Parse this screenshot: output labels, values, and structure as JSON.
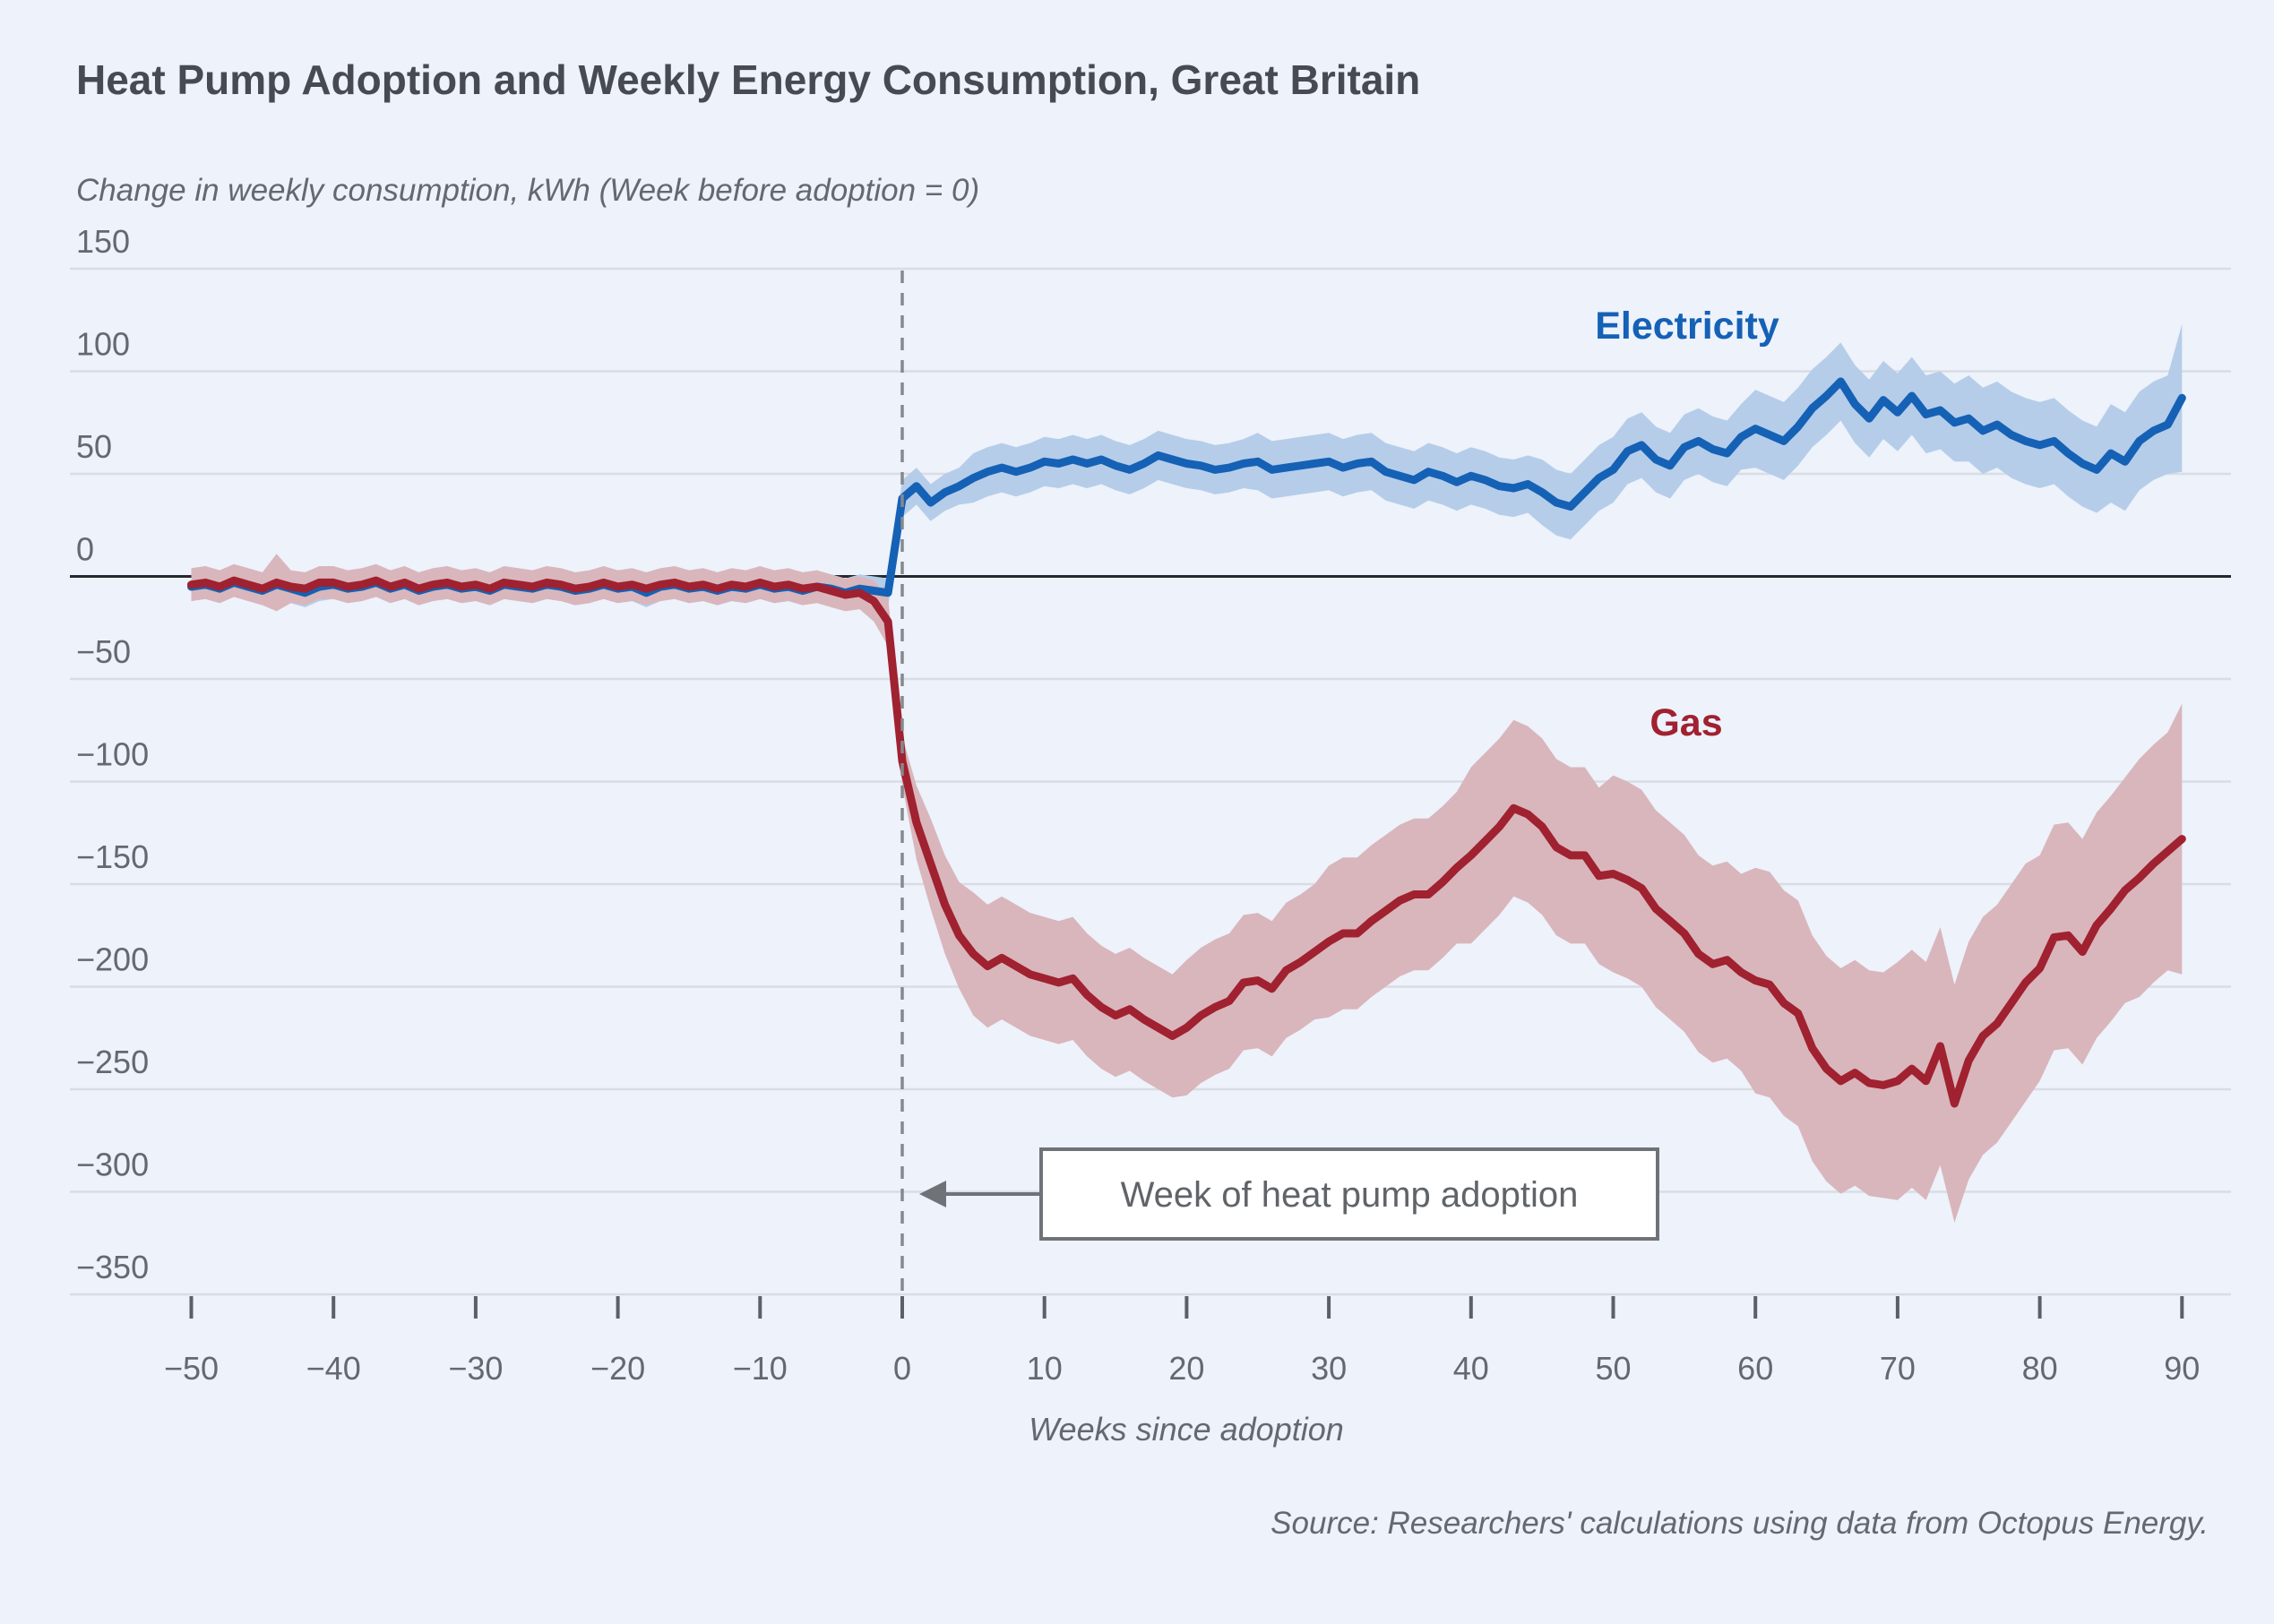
{
  "title": "Heat Pump Adoption and Weekly Energy Consumption, Great Britain",
  "subtitle": "Change in weekly consumption, kWh (Week before adoption = 0)",
  "source": "Source: Researchers' calculations using data from Octopus Energy.",
  "annotation": {
    "text": "Week of heat pump adoption"
  },
  "series_labels": {
    "electricity": "Electricity",
    "gas": "Gas"
  },
  "colors": {
    "background": "#edf2fb",
    "title_color": "#474b51",
    "muted_text": "#64696f",
    "grid": "#d9dde3",
    "zero_line": "#26282c",
    "axis_line": "#c6cad1",
    "tick": "#5c6066",
    "dashed_line": "#85898e",
    "electricity": "#1561b5",
    "electricity_band": "#b5cde9",
    "gas": "#a02130",
    "gas_band": "#d9b6bc",
    "annotation_border": "#6f7378",
    "annotation_text": "#606468",
    "annotation_bg": "#ffffff"
  },
  "chart_data": {
    "type": "line",
    "title": "Heat Pump Adoption and Weekly Energy Consumption, Great Britain",
    "xlabel": "Weeks since adoption",
    "ylabel": "Change in weekly consumption, kWh (Week before adoption = 0)",
    "xlim": [
      -50,
      90
    ],
    "ylim": [
      -350,
      150
    ],
    "x_ticks": [
      -50,
      -40,
      -30,
      -20,
      -10,
      0,
      10,
      20,
      30,
      40,
      50,
      60,
      70,
      80,
      90
    ],
    "y_ticks": [
      150,
      100,
      50,
      0,
      -50,
      -100,
      -150,
      -200,
      -250,
      -300,
      -350
    ],
    "grid": true,
    "legend_position": "inline-labels",
    "weeks_start": -50,
    "series": [
      {
        "name": "Electricity",
        "key": "electricity",
        "values": [
          -5,
          -4,
          -6,
          -3,
          -5,
          -7,
          -4,
          -6,
          -8,
          -5,
          -4,
          -6,
          -5,
          -3,
          -6,
          -4,
          -7,
          -5,
          -4,
          -6,
          -5,
          -7,
          -4,
          -5,
          -6,
          -4,
          -5,
          -7,
          -6,
          -4,
          -6,
          -5,
          -8,
          -5,
          -4,
          -6,
          -5,
          -7,
          -5,
          -6,
          -4,
          -6,
          -5,
          -7,
          -5,
          -6,
          -8,
          -6,
          -7,
          -8,
          38,
          44,
          36,
          41,
          44,
          48,
          51,
          53,
          51,
          53,
          56,
          55,
          57,
          55,
          57,
          54,
          52,
          55,
          59,
          57,
          55,
          54,
          52,
          53,
          55,
          56,
          52,
          53,
          54,
          55,
          56,
          53,
          55,
          56,
          51,
          49,
          47,
          51,
          49,
          46,
          49,
          47,
          44,
          43,
          45,
          41,
          36,
          34,
          41,
          48,
          52,
          61,
          64,
          57,
          54,
          63,
          66,
          62,
          60,
          68,
          72,
          69,
          66,
          73,
          82,
          88,
          95,
          84,
          77,
          86,
          80,
          88,
          79,
          81,
          75,
          77,
          71,
          74,
          69,
          66,
          64,
          66,
          60,
          55,
          52,
          60,
          56,
          66,
          71,
          74,
          87
        ],
        "band_half_width": [
          7,
          7,
          7,
          7,
          7,
          7,
          7,
          7,
          7,
          7,
          7,
          7,
          7,
          7,
          7,
          7,
          7,
          7,
          7,
          7,
          7,
          7,
          7,
          7,
          7,
          7,
          7,
          7,
          7,
          7,
          7,
          7,
          7,
          7,
          7,
          7,
          7,
          7,
          7,
          7,
          7,
          7,
          7,
          7,
          7,
          7,
          7,
          7,
          7,
          7,
          9,
          9,
          9,
          9,
          9,
          12,
          12,
          12,
          12,
          12,
          12,
          12,
          12,
          12,
          12,
          12,
          12,
          12,
          12,
          12,
          12,
          12,
          12,
          12,
          12,
          14,
          14,
          14,
          14,
          14,
          14,
          14,
          14,
          14,
          14,
          14,
          14,
          14,
          14,
          14,
          14,
          14,
          14,
          14,
          14,
          16,
          16,
          16,
          16,
          16,
          16,
          16,
          16,
          16,
          16,
          16,
          16,
          16,
          16,
          16,
          19,
          19,
          19,
          19,
          19,
          19,
          19,
          19,
          19,
          19,
          19,
          19,
          19,
          19,
          19,
          21,
          21,
          21,
          21,
          21,
          21,
          21,
          21,
          21,
          21,
          24,
          24,
          24,
          24,
          24,
          36
        ]
      },
      {
        "name": "Gas",
        "key": "gas",
        "values": [
          -4,
          -3,
          -5,
          -2,
          -4,
          -6,
          -3,
          -5,
          -6,
          -3,
          -3,
          -5,
          -4,
          -2,
          -5,
          -3,
          -6,
          -4,
          -3,
          -5,
          -4,
          -6,
          -3,
          -4,
          -5,
          -3,
          -4,
          -6,
          -5,
          -3,
          -5,
          -4,
          -6,
          -4,
          -3,
          -5,
          -4,
          -6,
          -4,
          -5,
          -3,
          -5,
          -4,
          -6,
          -5,
          -7,
          -9,
          -8,
          -12,
          -22,
          -90,
          -120,
          -140,
          -160,
          -175,
          -184,
          -190,
          -186,
          -190,
          -194,
          -196,
          -198,
          -196,
          -204,
          -210,
          -214,
          -211,
          -216,
          -220,
          -224,
          -220,
          -214,
          -210,
          -207,
          -198,
          -197,
          -201,
          -192,
          -188,
          -183,
          -178,
          -174,
          -174,
          -168,
          -163,
          -158,
          -155,
          -155,
          -149,
          -142,
          -136,
          -129,
          -122,
          -113,
          -116,
          -122,
          -132,
          -136,
          -136,
          -146,
          -145,
          -148,
          -152,
          -162,
          -168,
          -174,
          -184,
          -189,
          -187,
          -193,
          -197,
          -199,
          -208,
          -213,
          -230,
          -240,
          -246,
          -242,
          -247,
          -248,
          -246,
          -240,
          -246,
          -229,
          -257,
          -236,
          -224,
          -218,
          -208,
          -198,
          -191,
          -176,
          -175,
          -183,
          -170,
          -162,
          -153,
          -147,
          -140,
          -134,
          -128
        ],
        "band_half_width": [
          8,
          8,
          8,
          8,
          8,
          8,
          14,
          8,
          8,
          8,
          8,
          8,
          8,
          8,
          8,
          8,
          8,
          8,
          8,
          8,
          8,
          8,
          8,
          8,
          8,
          8,
          8,
          8,
          8,
          8,
          8,
          8,
          8,
          8,
          8,
          8,
          8,
          8,
          8,
          8,
          8,
          8,
          8,
          8,
          8,
          8,
          8,
          8,
          10,
          12,
          12,
          18,
          22,
          24,
          26,
          30,
          30,
          30,
          30,
          30,
          30,
          30,
          30,
          30,
          30,
          30,
          30,
          30,
          30,
          30,
          33,
          33,
          33,
          33,
          33,
          33,
          33,
          33,
          33,
          33,
          37,
          37,
          37,
          37,
          37,
          37,
          37,
          37,
          37,
          37,
          43,
          43,
          43,
          43,
          43,
          43,
          43,
          43,
          43,
          43,
          48,
          48,
          48,
          48,
          48,
          48,
          48,
          48,
          48,
          48,
          55,
          55,
          55,
          55,
          55,
          55,
          55,
          55,
          55,
          55,
          58,
          58,
          58,
          58,
          58,
          58,
          58,
          58,
          58,
          58,
          55,
          55,
          55,
          55,
          55,
          55,
          55,
          58,
          58,
          58,
          66
        ]
      }
    ]
  }
}
